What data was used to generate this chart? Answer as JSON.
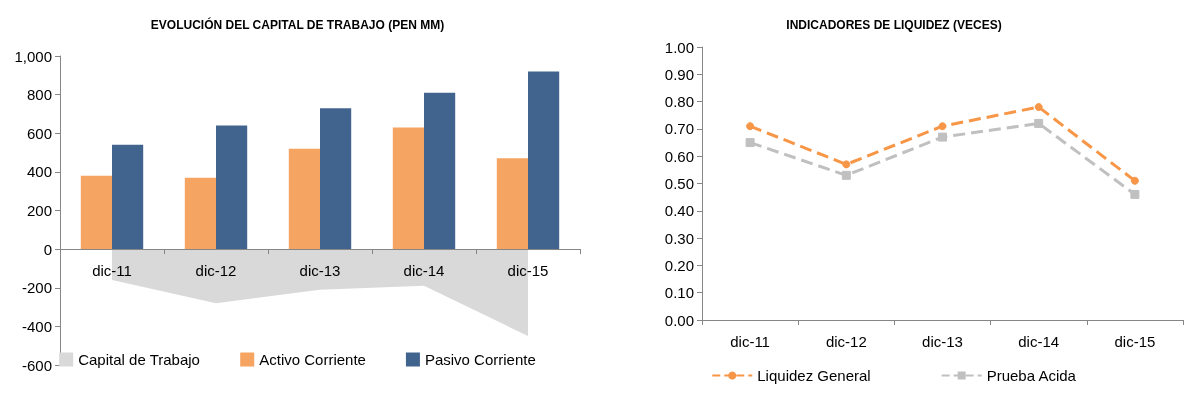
{
  "chart_data": [
    {
      "type": "bar",
      "title": "EVOLUCIÓN DEL CAPITAL DE TRABAJO (PEN MM)",
      "categories": [
        "dic-11",
        "dic-12",
        "dic-13",
        "dic-14",
        "dic-15"
      ],
      "series": [
        {
          "name": "Capital de Trabajo",
          "type": "area",
          "color": "#d9d9d9",
          "values": [
            -160,
            -280,
            -210,
            -190,
            -450
          ]
        },
        {
          "name": "Activo Corriente",
          "color": "#f5a462",
          "values": [
            380,
            370,
            520,
            630,
            470
          ]
        },
        {
          "name": "Pasivo Corriente",
          "color": "#41648f",
          "values": [
            540,
            640,
            730,
            810,
            920
          ]
        }
      ],
      "ylim": [
        -600,
        1000
      ],
      "yticks": [
        -600,
        -400,
        -200,
        0,
        200,
        400,
        600,
        800,
        {
          "value": 1000,
          "label": "1,000"
        }
      ],
      "grid": false,
      "legend": "bottom"
    },
    {
      "type": "line",
      "title": "INDICADORES DE LIQUIDEZ (VECES)",
      "categories": [
        "dic-11",
        "dic-12",
        "dic-13",
        "dic-14",
        "dic-15"
      ],
      "series": [
        {
          "name": "Liquidez General",
          "color": "#f79646",
          "marker": "circle",
          "values": [
            0.71,
            0.57,
            0.71,
            0.78,
            0.51
          ]
        },
        {
          "name": "Prueba Acida",
          "color": "#c0c0c0",
          "marker": "square",
          "values": [
            0.65,
            0.53,
            0.67,
            0.72,
            0.46
          ]
        }
      ],
      "ylim": [
        0,
        1
      ],
      "yticks": [
        {
          "value": 0,
          "label": "0.00"
        },
        {
          "value": 0.1,
          "label": "0.10"
        },
        {
          "value": 0.2,
          "label": "0.20"
        },
        {
          "value": 0.3,
          "label": "0.30"
        },
        {
          "value": 0.4,
          "label": "0.40"
        },
        {
          "value": 0.5,
          "label": "0.50"
        },
        {
          "value": 0.6,
          "label": "0.60"
        },
        {
          "value": 0.7,
          "label": "0.70"
        },
        {
          "value": 0.8,
          "label": "0.80"
        },
        {
          "value": 0.9,
          "label": "0.90"
        },
        {
          "value": 1,
          "label": "1.00"
        }
      ],
      "grid": false,
      "legend": "bottom",
      "line_style": "dashed"
    }
  ]
}
